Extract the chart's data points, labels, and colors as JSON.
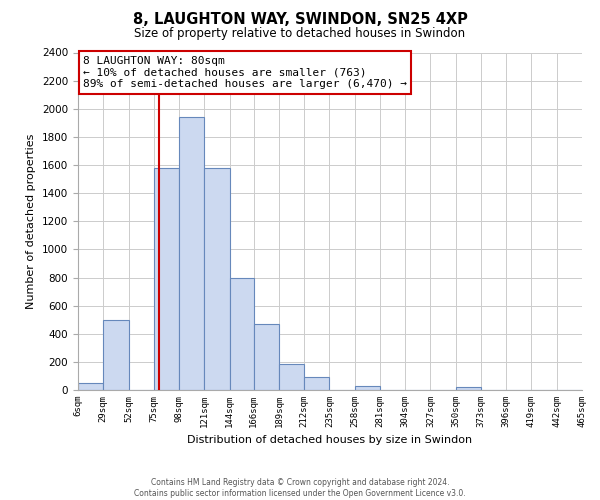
{
  "title": "8, LAUGHTON WAY, SWINDON, SN25 4XP",
  "subtitle": "Size of property relative to detached houses in Swindon",
  "xlabel": "Distribution of detached houses by size in Swindon",
  "ylabel": "Number of detached properties",
  "bin_edges": [
    6,
    29,
    52,
    75,
    98,
    121,
    144,
    166,
    189,
    212,
    235,
    258,
    281,
    304,
    327,
    350,
    373,
    396,
    419,
    442,
    465
  ],
  "bin_labels": [
    "6sqm",
    "29sqm",
    "52sqm",
    "75sqm",
    "98sqm",
    "121sqm",
    "144sqm",
    "166sqm",
    "189sqm",
    "212sqm",
    "235sqm",
    "258sqm",
    "281sqm",
    "304sqm",
    "327sqm",
    "350sqm",
    "373sqm",
    "396sqm",
    "419sqm",
    "442sqm",
    "465sqm"
  ],
  "counts": [
    50,
    500,
    0,
    1580,
    1940,
    1580,
    800,
    470,
    185,
    90,
    0,
    30,
    0,
    0,
    0,
    20,
    0,
    0,
    0,
    0
  ],
  "bar_color": "#ccd9f0",
  "bar_edge_color": "#6688bb",
  "red_line_x": 80,
  "annotation_title": "8 LAUGHTON WAY: 80sqm",
  "annotation_line1": "← 10% of detached houses are smaller (763)",
  "annotation_line2": "89% of semi-detached houses are larger (6,470) →",
  "annotation_box_color": "#ffffff",
  "annotation_box_edge": "#cc0000",
  "red_line_color": "#cc0000",
  "ylim": [
    0,
    2400
  ],
  "yticks": [
    0,
    200,
    400,
    600,
    800,
    1000,
    1200,
    1400,
    1600,
    1800,
    2000,
    2200,
    2400
  ],
  "footer_line1": "Contains HM Land Registry data © Crown copyright and database right 2024.",
  "footer_line2": "Contains public sector information licensed under the Open Government Licence v3.0.",
  "background_color": "#ffffff",
  "grid_color": "#cccccc"
}
